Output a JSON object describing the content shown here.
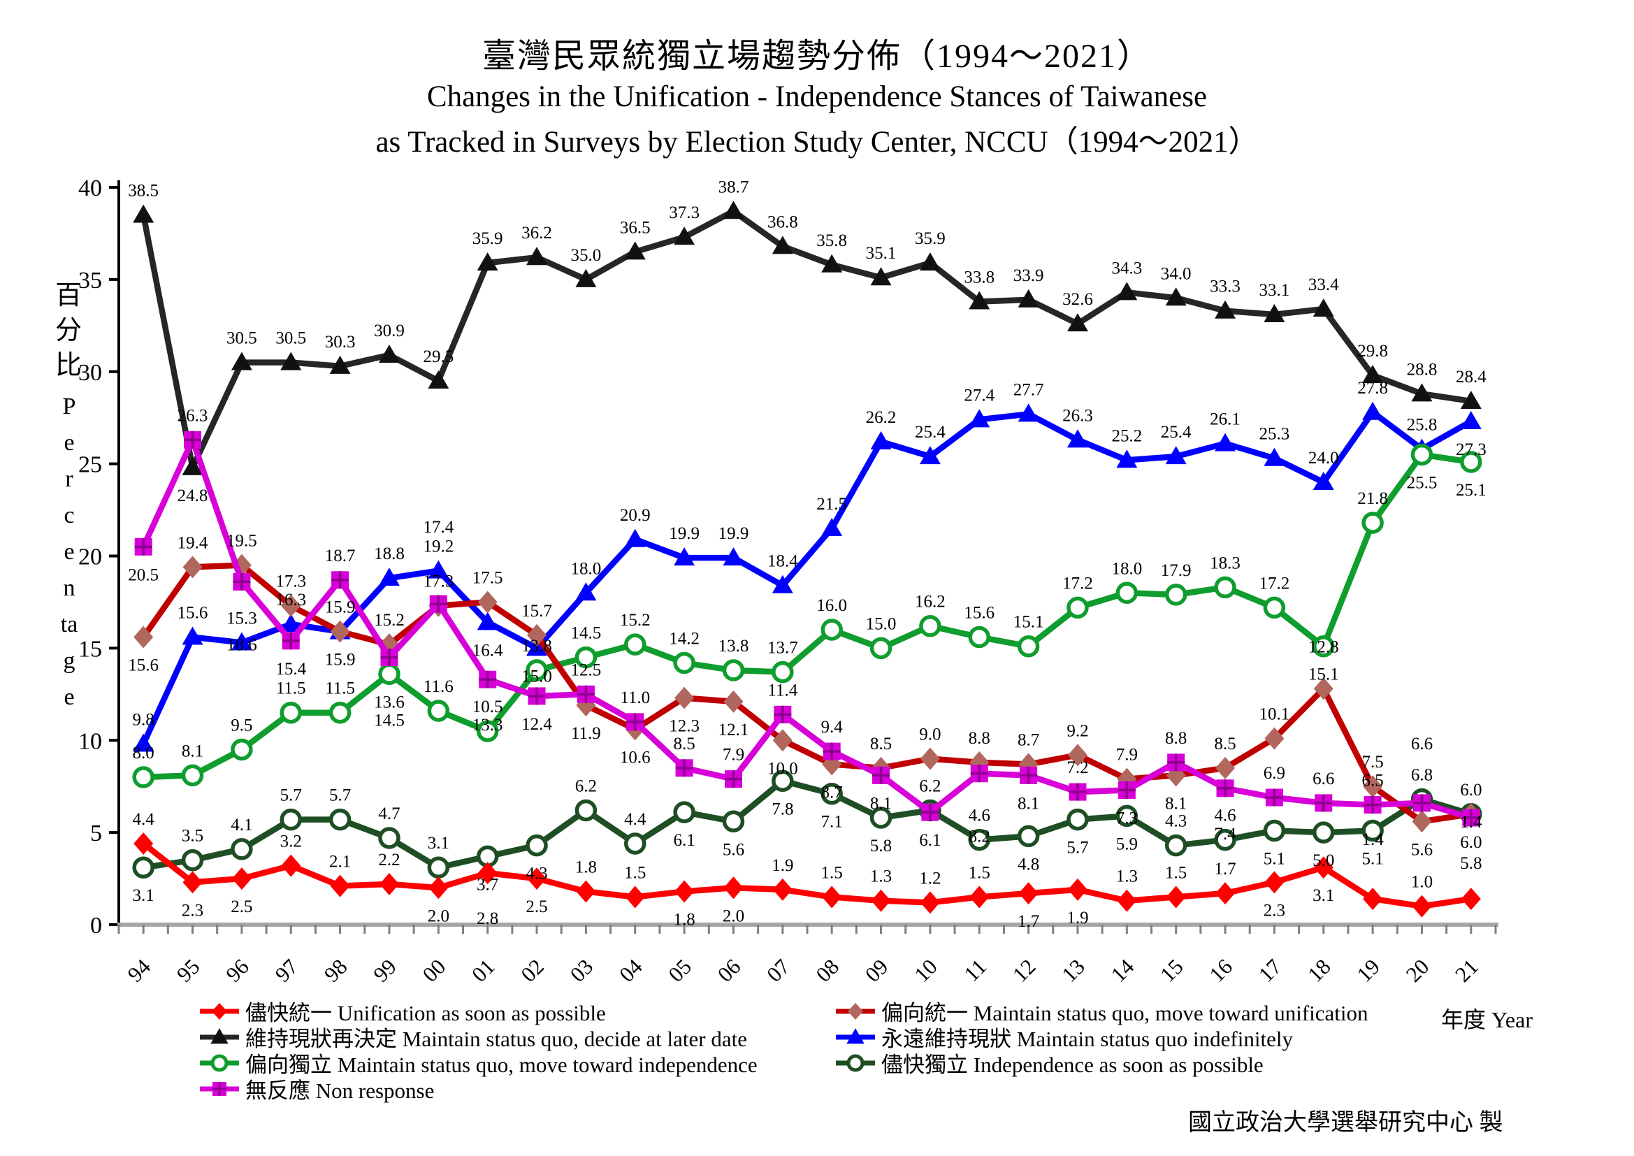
{
  "title": {
    "zh": "臺灣民眾統獨立場趨勢分佈（1994～2021）",
    "en_line1": "Changes in the Unification - Independence Stances of Taiwanese",
    "en_line2": "as Tracked in Surveys by Election Study Center, NCCU（1994～2021）"
  },
  "credit": "國立政治大學選舉研究中心 製",
  "chart_data": {
    "type": "line",
    "title_zh": "臺灣民眾統獨立場趨勢分佈（1994～2021）",
    "title_en": "Changes in the Unification - Independence Stances of Taiwanese as Tracked in Surveys by Election Study Center, NCCU（1994～2021）",
    "y_label_zh": "百分比",
    "y_label_en": "Percentage",
    "x_label": "年度 Year",
    "ylim": [
      0,
      40
    ],
    "y_ticks": [
      0,
      5,
      10,
      15,
      20,
      25,
      30,
      35,
      40
    ],
    "grid": false,
    "legend_position": "bottom",
    "categories": [
      "94",
      "95",
      "96",
      "97",
      "98",
      "99",
      "00",
      "01",
      "02",
      "03",
      "04",
      "05",
      "06",
      "07",
      "08",
      "09",
      "10",
      "11",
      "12",
      "13",
      "14",
      "15",
      "16",
      "17",
      "18",
      "19",
      "20",
      "21"
    ],
    "series": [
      {
        "id": "unification-asap",
        "label": "儘快統一 Unification as soon as possible",
        "name_zh": "儘快統一",
        "name_en": "Unification as soon as possible",
        "color": "#FF0000",
        "marker": "diamond",
        "marker_fill": "#FF0000",
        "label_side": "above",
        "label_flip": [
          1,
          2,
          6,
          7,
          8,
          11,
          12,
          18,
          19,
          23,
          24
        ],
        "values": [
          4.4,
          2.3,
          2.5,
          3.2,
          2.1,
          2.2,
          2.0,
          2.8,
          2.5,
          1.8,
          1.5,
          1.8,
          2.0,
          1.9,
          1.5,
          1.3,
          1.2,
          1.5,
          1.7,
          1.9,
          1.3,
          1.5,
          1.7,
          2.3,
          3.1,
          1.4,
          1.0,
          1.4
        ]
      },
      {
        "id": "toward-unification",
        "label": "偏向統一 Maintain status quo, move toward unification",
        "name_zh": "偏向統一",
        "name_en": "Maintain status quo, move toward unification",
        "color": "#C00000",
        "marker": "diamond",
        "marker_fill": "#B1665E",
        "label_side": "above",
        "label_flip": [
          0,
          4,
          9,
          10,
          11,
          12,
          13,
          14,
          21,
          26
        ],
        "values": [
          15.6,
          19.4,
          19.5,
          17.3,
          15.9,
          15.2,
          17.3,
          17.5,
          15.7,
          11.9,
          10.6,
          12.3,
          12.1,
          10.0,
          8.7,
          8.5,
          9.0,
          8.8,
          8.7,
          9.2,
          7.9,
          8.1,
          8.5,
          10.1,
          12.8,
          7.5,
          5.6,
          6.0
        ]
      },
      {
        "id": "maintain-decide-later",
        "label": "維持現狀再決定 Maintain status quo, decide at later date",
        "name_zh": "維持現狀再決定",
        "name_en": "Maintain status quo, decide at later date",
        "color": "#262626",
        "marker": "triangle",
        "marker_fill": "#111111",
        "label_side": "above",
        "label_flip": [
          1
        ],
        "values": [
          38.5,
          24.8,
          30.5,
          30.5,
          30.3,
          30.9,
          29.5,
          35.9,
          36.2,
          35.0,
          36.5,
          37.3,
          38.7,
          36.8,
          35.8,
          35.1,
          35.9,
          33.8,
          33.9,
          32.6,
          34.3,
          34.0,
          33.3,
          33.1,
          33.4,
          29.8,
          28.8,
          28.4
        ]
      },
      {
        "id": "maintain-indefinitely",
        "label": "永遠維持現狀 Maintain status quo indefinitely",
        "name_zh": "永遠維持現狀",
        "name_en": "Maintain status quo indefinitely",
        "color": "#0000FF",
        "marker": "triangle",
        "marker_fill": "#0000FF",
        "label_side": "above",
        "label_flip": [
          7,
          8,
          27
        ],
        "values": [
          9.8,
          15.6,
          15.3,
          16.3,
          15.9,
          18.8,
          19.2,
          16.4,
          15.0,
          18.0,
          20.9,
          19.9,
          19.9,
          18.4,
          21.5,
          26.2,
          25.4,
          27.4,
          27.7,
          26.3,
          25.2,
          25.4,
          26.1,
          25.3,
          24.0,
          27.8,
          25.8,
          27.3
        ]
      },
      {
        "id": "toward-independence",
        "label": "偏向獨立 Maintain status quo, move toward independence",
        "name_zh": "偏向獨立",
        "name_en": "Maintain status quo, move toward independence",
        "color": "#0F9D2E",
        "marker": "circle-open",
        "marker_fill": "#ffffff",
        "label_side": "above",
        "label_flip": [
          5,
          24,
          26,
          27
        ],
        "values": [
          8.0,
          8.1,
          9.5,
          11.5,
          11.5,
          13.6,
          11.6,
          10.5,
          13.8,
          14.5,
          15.2,
          14.2,
          13.8,
          13.7,
          16.0,
          15.0,
          16.2,
          15.6,
          15.1,
          17.2,
          18.0,
          17.9,
          18.3,
          17.2,
          15.1,
          21.8,
          25.5,
          25.1
        ]
      },
      {
        "id": "independence-asap",
        "label": "儘快獨立 Independence as soon as possible",
        "name_zh": "儘快獨立",
        "name_en": "Independence as soon as possible",
        "color": "#1E4E24",
        "marker": "circle-open",
        "marker_fill": "#ffffff",
        "label_side": "below",
        "label_flip": [
          1,
          2,
          3,
          4,
          5,
          6,
          9,
          10,
          16,
          17,
          21,
          22,
          26
        ],
        "values": [
          3.1,
          3.5,
          4.1,
          5.7,
          5.7,
          4.7,
          3.1,
          3.7,
          4.3,
          6.2,
          4.4,
          6.1,
          5.6,
          7.8,
          7.1,
          5.8,
          6.2,
          4.6,
          4.8,
          5.7,
          5.9,
          4.3,
          4.6,
          5.1,
          5.0,
          5.1,
          6.8,
          6.0
        ]
      },
      {
        "id": "non-response",
        "label": "無反應 Non response",
        "name_zh": "無反應",
        "name_en": "Non response",
        "color": "#D800D8",
        "marker": "square-plus",
        "marker_fill": "#D800D8",
        "label_side": "below",
        "label_flip": [
          1,
          4,
          6,
          9,
          10,
          11,
          12,
          13,
          14,
          19,
          21,
          23,
          24,
          25,
          26
        ],
        "values": [
          20.5,
          26.3,
          18.6,
          15.4,
          18.7,
          14.5,
          17.4,
          13.3,
          12.4,
          12.5,
          11.0,
          8.5,
          7.9,
          11.4,
          9.4,
          8.1,
          6.1,
          8.2,
          8.1,
          7.2,
          7.3,
          8.8,
          7.4,
          6.9,
          6.6,
          6.5,
          6.6,
          5.8
        ]
      }
    ],
    "draw_order": [
      2,
      3,
      4,
      5,
      1,
      6,
      0
    ],
    "legend_columns": [
      [
        0,
        2,
        4,
        6
      ],
      [
        1,
        3,
        5
      ]
    ],
    "axis_colors": {
      "y_axis": "#000000",
      "x_axis": "#A6A6A6",
      "x_tick": "#7F7F7F"
    }
  }
}
